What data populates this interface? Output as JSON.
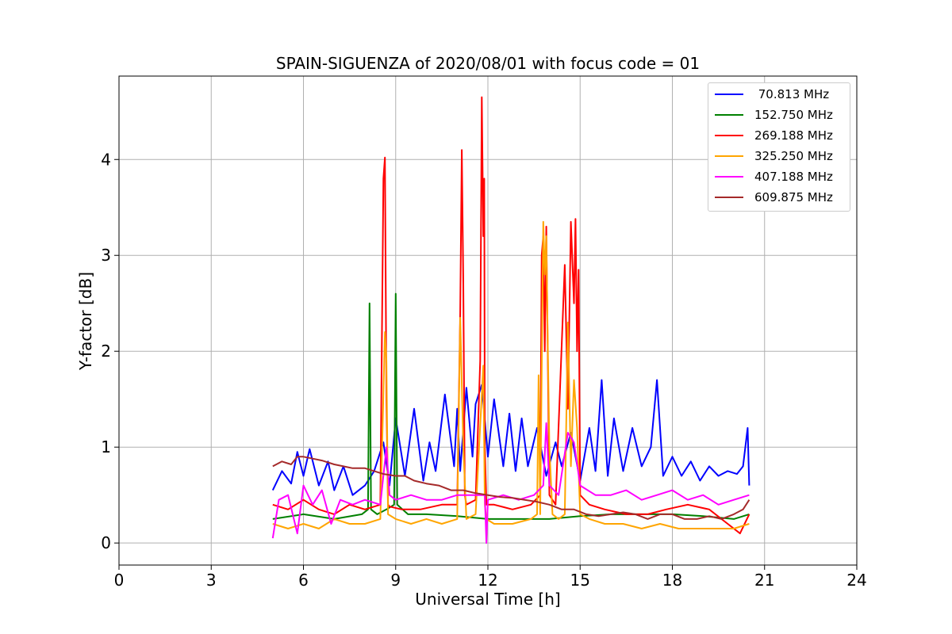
{
  "chart_data": {
    "type": "line",
    "title": "SPAIN-SIGUENZA of 2020/08/01 with focus code = 01",
    "xlabel": "Universal Time [h]",
    "ylabel": "Y-factor [dB]",
    "xlim": [
      0,
      24
    ],
    "ylim": [
      -0.23,
      4.87
    ],
    "xticks": [
      0,
      3,
      6,
      9,
      12,
      15,
      18,
      21,
      24
    ],
    "yticks": [
      0,
      1,
      2,
      3,
      4
    ],
    "grid": true,
    "legend_position": "top-right",
    "series": [
      {
        "name": " 70.813 MHz",
        "color": "#0000ff",
        "x": [
          5.0,
          5.3,
          5.6,
          5.8,
          6.0,
          6.2,
          6.5,
          6.8,
          7.0,
          7.3,
          7.6,
          8.0,
          8.3,
          8.6,
          8.8,
          9.0,
          9.3,
          9.6,
          9.9,
          10.1,
          10.3,
          10.6,
          10.9,
          11.0,
          11.1,
          11.3,
          11.5,
          11.6,
          11.8,
          12.0,
          12.2,
          12.5,
          12.7,
          12.9,
          13.1,
          13.3,
          13.6,
          13.9,
          14.2,
          14.4,
          14.7,
          15.0,
          15.3,
          15.5,
          15.7,
          15.9,
          16.1,
          16.4,
          16.7,
          17.0,
          17.3,
          17.5,
          17.7,
          18.0,
          18.3,
          18.6,
          18.9,
          19.2,
          19.5,
          19.8,
          20.1,
          20.3,
          20.45,
          20.5
        ],
        "y": [
          0.55,
          0.75,
          0.62,
          0.95,
          0.7,
          0.98,
          0.6,
          0.85,
          0.55,
          0.8,
          0.5,
          0.6,
          0.75,
          1.05,
          0.6,
          1.3,
          0.7,
          1.4,
          0.65,
          1.05,
          0.75,
          1.55,
          0.8,
          1.4,
          0.75,
          1.62,
          0.9,
          1.45,
          1.65,
          0.9,
          1.5,
          0.8,
          1.35,
          0.75,
          1.3,
          0.8,
          1.2,
          0.7,
          1.05,
          0.8,
          1.15,
          0.65,
          1.2,
          0.75,
          1.7,
          0.7,
          1.3,
          0.75,
          1.2,
          0.8,
          1.0,
          1.7,
          0.7,
          0.9,
          0.7,
          0.85,
          0.65,
          0.8,
          0.7,
          0.75,
          0.72,
          0.8,
          1.2,
          0.6
        ]
      },
      {
        "name": "152.750 MHz",
        "color": "#008000",
        "x": [
          5.0,
          6.0,
          7.0,
          7.9,
          8.1,
          8.15,
          8.2,
          8.4,
          8.7,
          8.95,
          9.0,
          9.05,
          9.4,
          10.0,
          11.0,
          12.0,
          13.0,
          14.0,
          15.0,
          16.0,
          17.0,
          18.0,
          19.0,
          20.0,
          20.5
        ],
        "y": [
          0.25,
          0.3,
          0.25,
          0.3,
          0.35,
          2.5,
          0.35,
          0.3,
          0.35,
          0.4,
          2.6,
          0.4,
          0.3,
          0.3,
          0.28,
          0.25,
          0.25,
          0.25,
          0.28,
          0.3,
          0.3,
          0.3,
          0.28,
          0.25,
          0.3
        ]
      },
      {
        "name": "269.188 MHz",
        "color": "#ff0000",
        "x": [
          5.0,
          5.5,
          6.0,
          6.5,
          7.0,
          7.5,
          8.0,
          8.5,
          8.6,
          8.65,
          8.7,
          8.75,
          8.8,
          9.2,
          9.8,
          10.5,
          11.0,
          11.1,
          11.15,
          11.2,
          11.25,
          11.3,
          11.6,
          11.75,
          11.8,
          11.85,
          11.88,
          11.9,
          11.95,
          12.2,
          12.8,
          13.4,
          13.7,
          13.75,
          13.8,
          13.85,
          13.9,
          14.0,
          14.2,
          14.5,
          14.6,
          14.7,
          14.8,
          14.85,
          14.9,
          14.95,
          15.0,
          15.3,
          15.8,
          16.5,
          17.2,
          17.8,
          18.5,
          19.2,
          19.8,
          20.2,
          20.5
        ],
        "y": [
          0.4,
          0.35,
          0.45,
          0.35,
          0.3,
          0.4,
          0.35,
          0.4,
          3.8,
          4.02,
          1.5,
          0.4,
          0.38,
          0.35,
          0.35,
          0.4,
          0.4,
          2.4,
          4.1,
          2.7,
          0.5,
          0.4,
          0.45,
          1.9,
          4.65,
          3.2,
          3.8,
          1.0,
          0.4,
          0.4,
          0.35,
          0.4,
          0.5,
          3.0,
          3.2,
          2.0,
          3.3,
          0.5,
          0.4,
          2.9,
          1.4,
          3.35,
          2.5,
          3.38,
          2.0,
          2.85,
          0.5,
          0.4,
          0.35,
          0.3,
          0.3,
          0.35,
          0.4,
          0.35,
          0.2,
          0.1,
          0.3
        ]
      },
      {
        "name": "325.250 MHz",
        "color": "#ffa500",
        "x": [
          5.0,
          5.5,
          6.0,
          6.5,
          7.0,
          7.5,
          8.0,
          8.5,
          8.65,
          8.7,
          8.75,
          9.0,
          9.5,
          10.0,
          10.5,
          11.0,
          11.1,
          11.2,
          11.3,
          11.6,
          11.85,
          11.9,
          11.95,
          12.2,
          12.8,
          13.4,
          13.6,
          13.65,
          13.7,
          13.8,
          13.85,
          13.9,
          13.95,
          14.0,
          14.1,
          14.3,
          14.5,
          14.6,
          14.7,
          14.8,
          14.9,
          15.0,
          15.3,
          15.8,
          16.4,
          17.0,
          17.6,
          18.2,
          18.8,
          19.4,
          20.0,
          20.5
        ],
        "y": [
          0.2,
          0.15,
          0.2,
          0.15,
          0.25,
          0.2,
          0.2,
          0.25,
          2.2,
          1.9,
          0.3,
          0.25,
          0.2,
          0.25,
          0.2,
          0.25,
          2.35,
          1.0,
          0.25,
          0.3,
          1.85,
          0.4,
          0.25,
          0.2,
          0.2,
          0.25,
          0.3,
          1.75,
          0.3,
          3.35,
          2.8,
          3.2,
          2.0,
          1.0,
          0.3,
          0.25,
          0.3,
          2.3,
          0.8,
          1.7,
          1.2,
          0.3,
          0.25,
          0.2,
          0.2,
          0.15,
          0.2,
          0.15,
          0.15,
          0.15,
          0.15,
          0.2
        ]
      },
      {
        "name": "407.188 MHz",
        "color": "#ff00ff",
        "x": [
          5.0,
          5.2,
          5.5,
          5.8,
          6.0,
          6.3,
          6.6,
          6.9,
          7.2,
          7.6,
          8.0,
          8.5,
          8.7,
          8.8,
          9.0,
          9.5,
          10.0,
          10.5,
          11.0,
          11.5,
          11.9,
          11.95,
          12.0,
          12.5,
          13.0,
          13.5,
          13.8,
          13.9,
          14.0,
          14.3,
          14.6,
          14.8,
          15.0,
          15.5,
          16.0,
          16.5,
          17.0,
          17.5,
          18.0,
          18.5,
          19.0,
          19.5,
          20.0,
          20.5
        ],
        "y": [
          0.05,
          0.45,
          0.5,
          0.1,
          0.6,
          0.4,
          0.55,
          0.2,
          0.45,
          0.4,
          0.45,
          0.4,
          1.0,
          0.5,
          0.45,
          0.5,
          0.45,
          0.45,
          0.5,
          0.5,
          0.5,
          0.0,
          0.45,
          0.5,
          0.45,
          0.5,
          0.6,
          1.25,
          0.6,
          0.5,
          1.15,
          1.05,
          0.6,
          0.5,
          0.5,
          0.55,
          0.45,
          0.5,
          0.55,
          0.45,
          0.5,
          0.4,
          0.45,
          0.5
        ]
      },
      {
        "name": "609.875 MHz",
        "color": "#a52a2a",
        "x": [
          5.0,
          5.3,
          5.6,
          5.8,
          6.0,
          6.3,
          6.6,
          7.0,
          7.3,
          7.6,
          8.0,
          8.3,
          8.6,
          9.0,
          9.3,
          9.6,
          10.0,
          10.4,
          10.8,
          11.2,
          11.6,
          12.0,
          12.4,
          12.8,
          13.2,
          13.6,
          14.0,
          14.4,
          14.8,
          15.2,
          15.6,
          16.0,
          16.4,
          16.8,
          17.2,
          17.6,
          18.0,
          18.4,
          18.8,
          19.2,
          19.6,
          20.0,
          20.3,
          20.5
        ],
        "y": [
          0.8,
          0.85,
          0.82,
          0.9,
          0.9,
          0.88,
          0.86,
          0.82,
          0.8,
          0.78,
          0.78,
          0.75,
          0.72,
          0.7,
          0.7,
          0.65,
          0.62,
          0.6,
          0.55,
          0.55,
          0.52,
          0.5,
          0.48,
          0.47,
          0.45,
          0.43,
          0.4,
          0.35,
          0.35,
          0.3,
          0.28,
          0.3,
          0.32,
          0.3,
          0.25,
          0.3,
          0.3,
          0.25,
          0.25,
          0.28,
          0.25,
          0.3,
          0.35,
          0.45
        ]
      }
    ]
  }
}
